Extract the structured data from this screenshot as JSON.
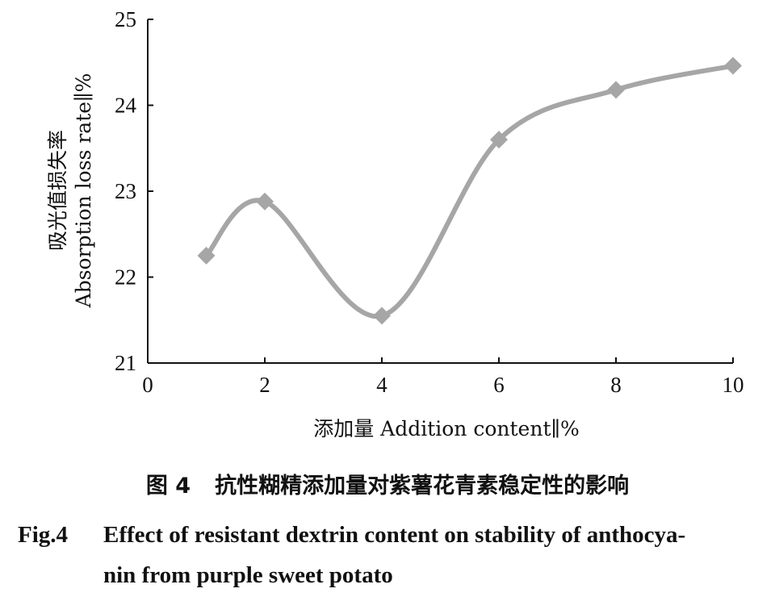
{
  "chart_data": {
    "type": "line",
    "x": [
      1,
      2,
      4,
      6,
      8,
      10
    ],
    "y": [
      22.25,
      22.88,
      21.55,
      23.6,
      24.18,
      24.46
    ],
    "xlim": [
      0,
      10
    ],
    "ylim": [
      21,
      25
    ],
    "xticks": [
      "0",
      "2",
      "4",
      "6",
      "8",
      "10"
    ],
    "yticks": [
      "21",
      "22",
      "23",
      "24",
      "25"
    ],
    "xlabel": "添加量 Addition content∥%",
    "ylabel_cn": "吸光值损失率",
    "ylabel_en": "Absorption loss rate∥%",
    "line_color": "#a6a6a6",
    "marker": "diamond",
    "smooth": true,
    "grid": false
  },
  "caption": {
    "cn_number": "图 4",
    "cn_title": "抗性糊精添加量对紫薯花青素稳定性的影响",
    "en_number": "Fig.4",
    "en_title_line1": "Effect of resistant dextrin content on stability of anthocya-",
    "en_title_line2": "nin from purple sweet potato"
  }
}
